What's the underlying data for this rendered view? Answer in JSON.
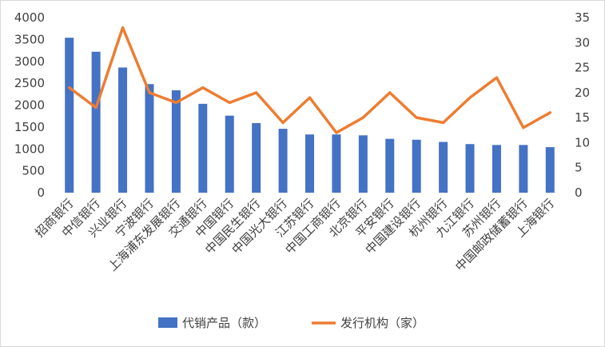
{
  "chart_data": {
    "type": "bar+line",
    "categories": [
      "招商银行",
      "中信银行",
      "兴业银行",
      "宁波银行",
      "上海浦东发展银行",
      "交通银行",
      "中国银行",
      "中国民生银行",
      "中国光大银行",
      "江苏银行",
      "中国工商银行",
      "北京银行",
      "平安银行",
      "中国建设银行",
      "杭州银行",
      "九江银行",
      "苏州银行",
      "中国邮政储蓄银行",
      "上海银行"
    ],
    "series": [
      {
        "name": "代销产品（款）",
        "type": "bar",
        "axis": "left",
        "color": "#4472C4",
        "values": [
          3540,
          3220,
          2860,
          2480,
          2340,
          2030,
          1760,
          1590,
          1460,
          1330,
          1330,
          1310,
          1230,
          1210,
          1160,
          1110,
          1090,
          1090,
          1040
        ]
      },
      {
        "name": "发行机构（家）",
        "type": "line",
        "axis": "right",
        "color": "#ED7D31",
        "values": [
          21,
          17,
          33,
          20,
          18,
          21,
          18,
          20,
          14,
          19,
          12,
          15,
          20,
          15,
          14,
          19,
          23,
          13,
          16
        ]
      }
    ],
    "y_left": {
      "lim": [
        0,
        4000
      ],
      "ticks": [
        "0",
        "500",
        "1000",
        "1500",
        "2000",
        "2500",
        "3000",
        "3500",
        "4000"
      ]
    },
    "y_right": {
      "lim": [
        0,
        35
      ],
      "ticks": [
        "0",
        "5",
        "10",
        "15",
        "20",
        "25",
        "30",
        "35"
      ]
    },
    "grid": false,
    "legend": "bottom",
    "title": ""
  }
}
